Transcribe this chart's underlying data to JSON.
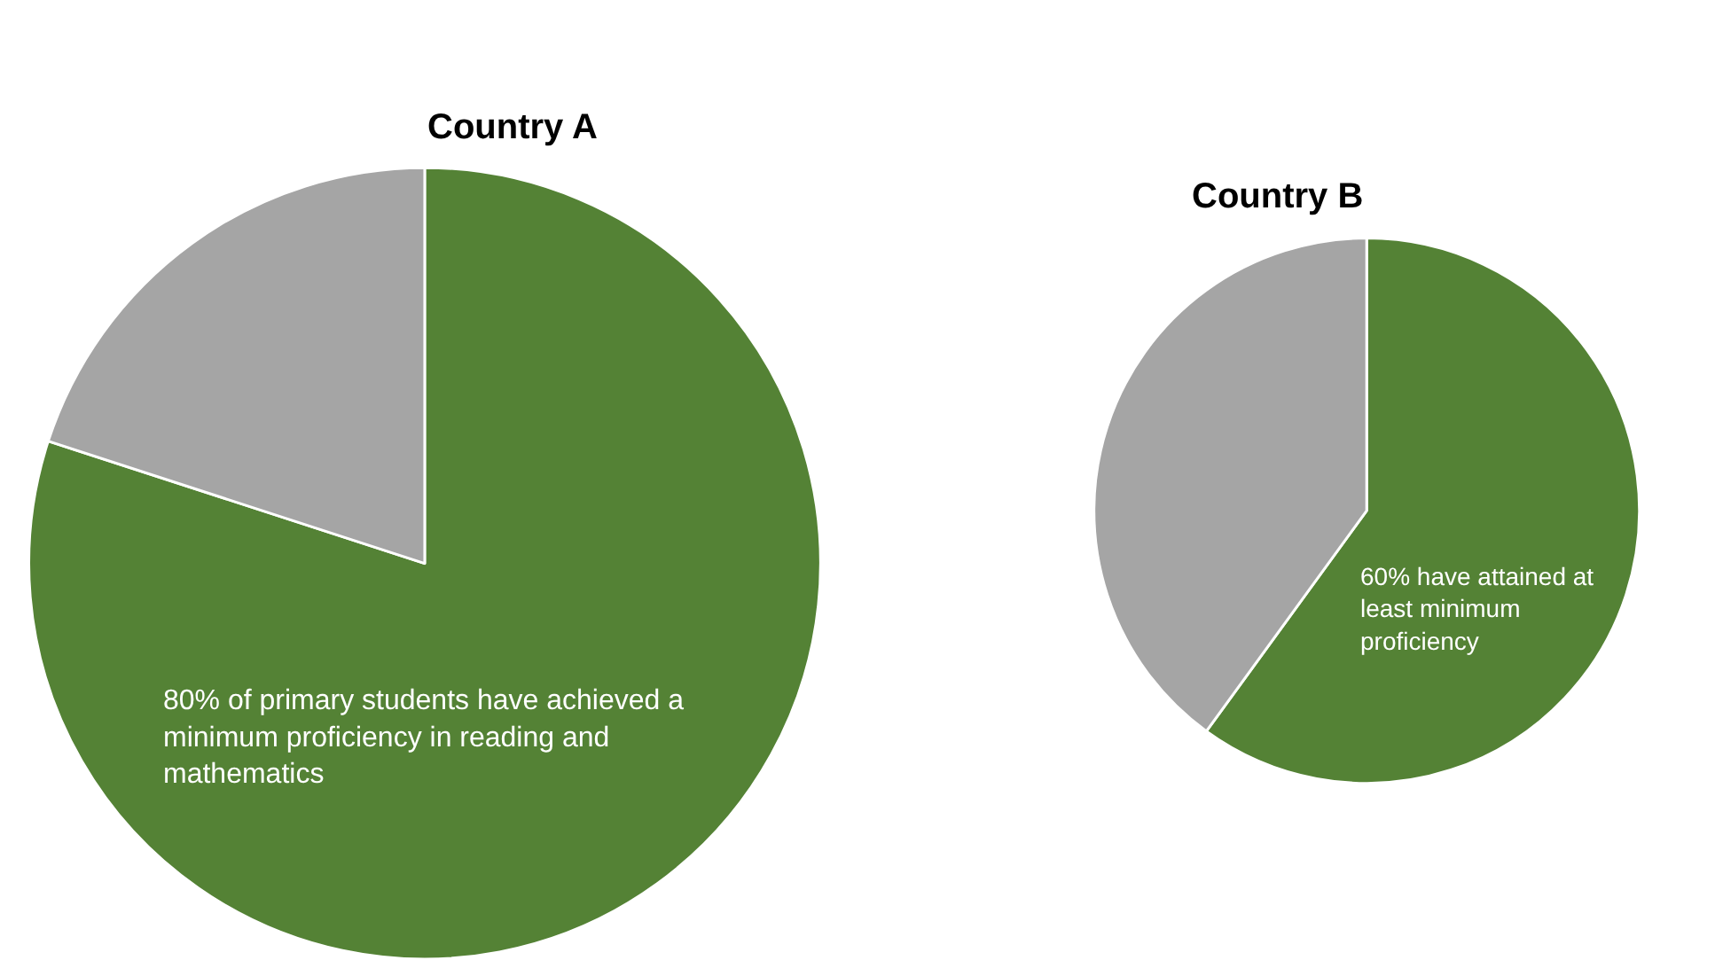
{
  "chart_data": [
    {
      "type": "pie",
      "title": "Country A",
      "categories": [
        null,
        null
      ],
      "values": [
        80,
        20
      ],
      "colors": [
        "#548235",
        "#a5a5a5"
      ],
      "annotations": [
        "80% of primary students have achieved a minimum proficiency in reading and mathematics"
      ]
    },
    {
      "type": "pie",
      "title": "Country B",
      "categories": [
        null,
        null
      ],
      "values": [
        60,
        40
      ],
      "colors": [
        "#548235",
        "#a5a5a5"
      ],
      "annotations": [
        "60% have attained at least minimum proficiency"
      ]
    }
  ]
}
